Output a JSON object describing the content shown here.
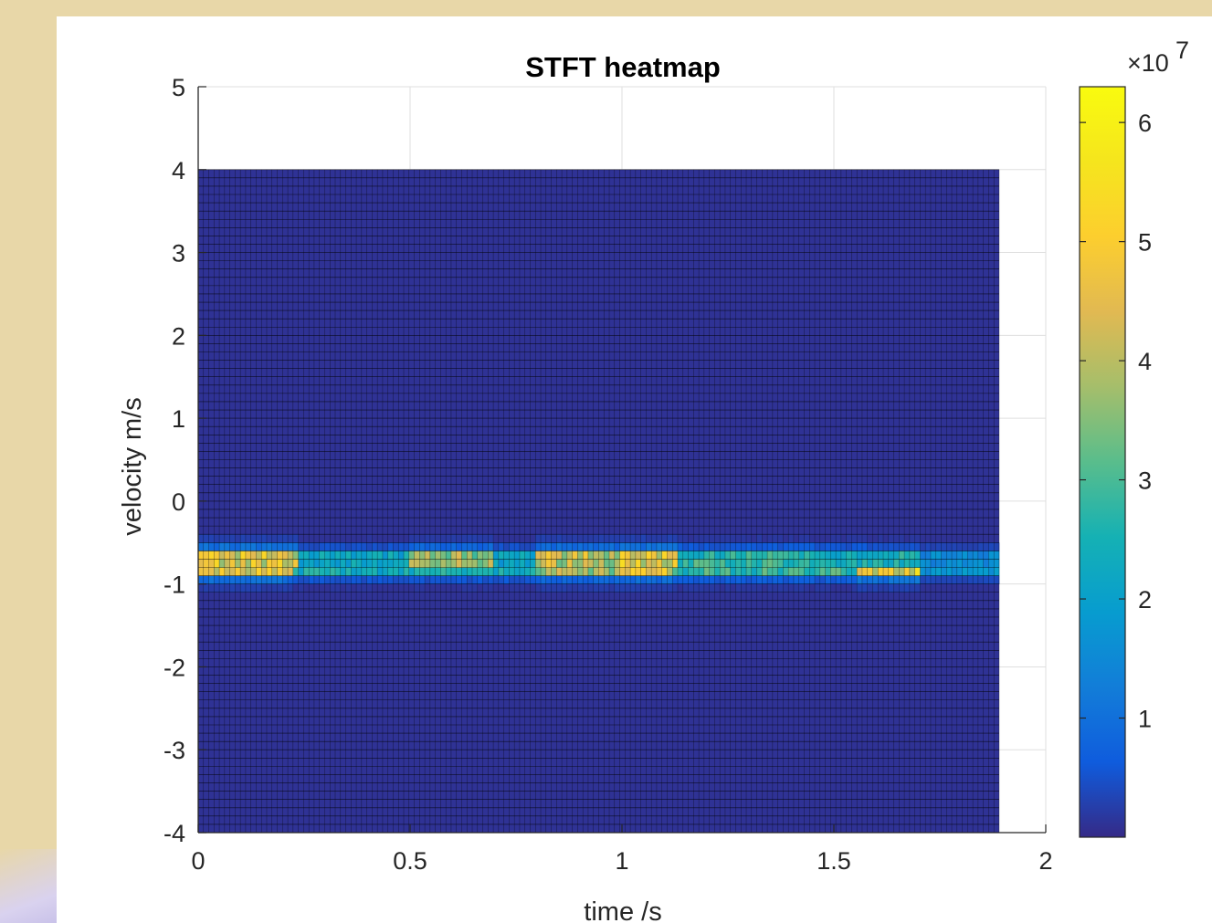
{
  "chart_data": {
    "type": "heatmap",
    "title": "STFT heatmap",
    "xlabel": "time /s",
    "ylabel": "velocity m/s",
    "xlim": [
      0,
      2
    ],
    "ylim": [
      -4,
      5
    ],
    "x_ticks": [
      "0",
      "0.5",
      "1",
      "1.5",
      "2"
    ],
    "y_ticks": [
      "-4",
      "-3",
      "-2",
      "-1",
      "0",
      "1",
      "2",
      "3",
      "4",
      "5"
    ],
    "grid": true,
    "data_extent": {
      "x": [
        0,
        1.89
      ],
      "y": [
        -4,
        4
      ]
    },
    "time_bins": 152,
    "velocity_bins": 80,
    "background_value": 1000000,
    "bands": [
      {
        "name": "upper-line",
        "velocity": -0.7,
        "segments": [
          {
            "t0": 0.0,
            "t1": 0.24,
            "peak": 54000000
          },
          {
            "t0": 0.24,
            "t1": 0.5,
            "peak": 26000000
          },
          {
            "t0": 0.5,
            "t1": 0.7,
            "peak": 44000000
          },
          {
            "t0": 0.7,
            "t1": 0.79,
            "peak": 25000000
          },
          {
            "t0": 0.79,
            "t1": 1.0,
            "peak": 50000000
          },
          {
            "t0": 1.0,
            "t1": 1.13,
            "peak": 55000000
          },
          {
            "t0": 1.13,
            "t1": 1.45,
            "peak": 33000000
          },
          {
            "t0": 1.45,
            "t1": 1.7,
            "peak": 30000000
          },
          {
            "t0": 1.7,
            "t1": 1.89,
            "peak": 18000000
          }
        ]
      },
      {
        "name": "lower-line",
        "velocity": -0.82,
        "segments": [
          {
            "t0": 0.0,
            "t1": 0.22,
            "peak": 52000000
          },
          {
            "t0": 0.22,
            "t1": 0.55,
            "peak": 28000000
          },
          {
            "t0": 0.55,
            "t1": 0.8,
            "peak": 30000000
          },
          {
            "t0": 0.8,
            "t1": 0.98,
            "peak": 45000000
          },
          {
            "t0": 0.98,
            "t1": 1.12,
            "peak": 52000000
          },
          {
            "t0": 1.12,
            "t1": 1.55,
            "peak": 34000000
          },
          {
            "t0": 1.55,
            "t1": 1.7,
            "peak": 56000000
          },
          {
            "t0": 1.7,
            "t1": 1.89,
            "peak": 20000000
          }
        ]
      }
    ],
    "colorbar": {
      "colormap": "parula",
      "range": [
        0,
        63000000
      ],
      "ticks": [
        "1",
        "2",
        "3",
        "4",
        "5",
        "6"
      ],
      "exponent_label": "×10",
      "exponent": "7"
    }
  },
  "colors": {
    "background": "#e8d7a8",
    "figure": "#ffffff",
    "grid": "#dfdfdf",
    "axis": "#262626",
    "cell_edge": "#000000"
  }
}
